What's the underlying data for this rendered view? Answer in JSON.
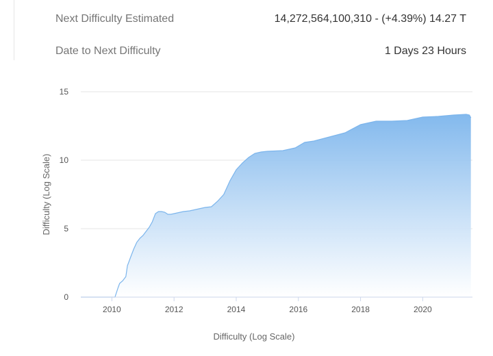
{
  "info": {
    "next_difficulty_label": "Next Difficulty Estimated",
    "next_difficulty_value": "14,272,564,100,310 - (+4.39%) 14.27 T",
    "date_label": "Date to Next Difficulty",
    "date_value": "1 Days 23 Hours"
  },
  "chart_data": {
    "type": "area",
    "title": "",
    "xlabel": "Difficulty (Log Scale)",
    "ylabel": "Difficulty (Log Scale)",
    "xlim": [
      2009.0,
      2021.6
    ],
    "ylim": [
      0,
      15
    ],
    "xticks": [
      2010,
      2012,
      2014,
      2016,
      2018,
      2020
    ],
    "yticks": [
      0,
      5,
      10,
      15
    ],
    "grid": true,
    "gradient_top_color": "#7cb5ec",
    "gradient_bottom_color": "#ffffff",
    "line_color": "#7cb5ec",
    "series": [
      {
        "x": [
          2009.0,
          2010.1,
          2010.2,
          2010.25,
          2010.35,
          2010.45,
          2010.5,
          2010.55,
          2010.6,
          2010.7,
          2010.8,
          2010.9,
          2011.0,
          2011.1,
          2011.2,
          2011.3,
          2011.4,
          2011.5,
          2011.6,
          2011.7,
          2011.8,
          2011.9,
          2012.0,
          2012.3,
          2012.5,
          2012.8,
          2013.0,
          2013.2,
          2013.4,
          2013.6,
          2013.8,
          2014.0,
          2014.2,
          2014.4,
          2014.6,
          2014.8,
          2015.0,
          2015.5,
          2015.9,
          2016.2,
          2016.5,
          2017.0,
          2017.5,
          2018.0,
          2018.5,
          2018.9,
          2019.0,
          2019.5,
          2020.0,
          2020.5,
          2021.0,
          2021.4,
          2021.5,
          2021.55
        ],
        "y": [
          0.0,
          0.0,
          0.7,
          1.0,
          1.2,
          1.5,
          2.3,
          2.6,
          2.9,
          3.5,
          4.0,
          4.3,
          4.5,
          4.8,
          5.1,
          5.5,
          6.1,
          6.25,
          6.25,
          6.2,
          6.05,
          6.05,
          6.1,
          6.25,
          6.3,
          6.45,
          6.55,
          6.6,
          7.0,
          7.5,
          8.5,
          9.3,
          9.8,
          10.2,
          10.5,
          10.6,
          10.65,
          10.7,
          10.9,
          11.3,
          11.4,
          11.7,
          12.0,
          12.6,
          12.85,
          12.85,
          12.85,
          12.9,
          13.15,
          13.2,
          13.3,
          13.35,
          13.3,
          13.1
        ]
      }
    ]
  }
}
